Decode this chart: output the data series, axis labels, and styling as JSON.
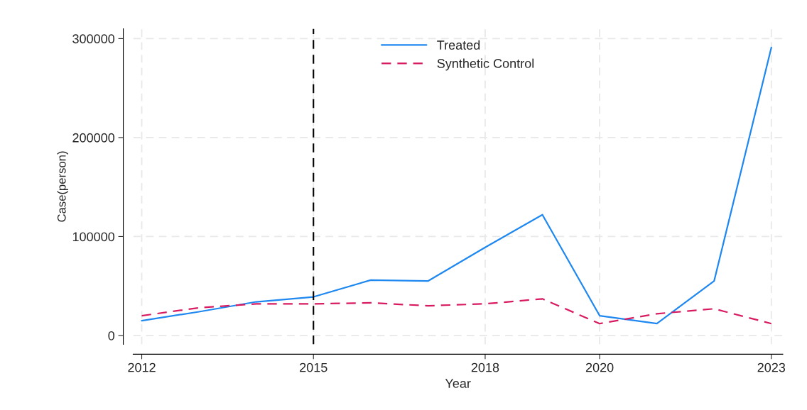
{
  "chart_data": {
    "type": "line",
    "xlabel": "Year",
    "ylabel": "Case(person)",
    "x": [
      2012,
      2013,
      2014,
      2015,
      2016,
      2017,
      2018,
      2019,
      2020,
      2021,
      2022,
      2023
    ],
    "series": [
      {
        "name": "Treated",
        "color": "#1e88f0",
        "line_style": "solid",
        "values": [
          15000,
          24000,
          34000,
          39000,
          56000,
          55000,
          89000,
          122000,
          20000,
          12000,
          55000,
          291000
        ]
      },
      {
        "name": "Synthetic Control",
        "color": "#d81b60",
        "line_style": "dashed",
        "values": [
          20000,
          28000,
          32000,
          32000,
          33000,
          30000,
          32000,
          37000,
          12000,
          22000,
          27000,
          12000
        ]
      }
    ],
    "xlim": [
      2011.85,
      2023.2
    ],
    "ylim": [
      -9000,
      310000
    ],
    "xticks": [
      2012,
      2015,
      2018,
      2020,
      2023
    ],
    "yticks": [
      0,
      100000,
      200000,
      300000
    ],
    "ref_lines": [
      {
        "axis": "x",
        "value": 2015,
        "color": "#000000",
        "line_style": "dashed"
      }
    ],
    "grid": true,
    "legend": "top",
    "marker": "none"
  }
}
